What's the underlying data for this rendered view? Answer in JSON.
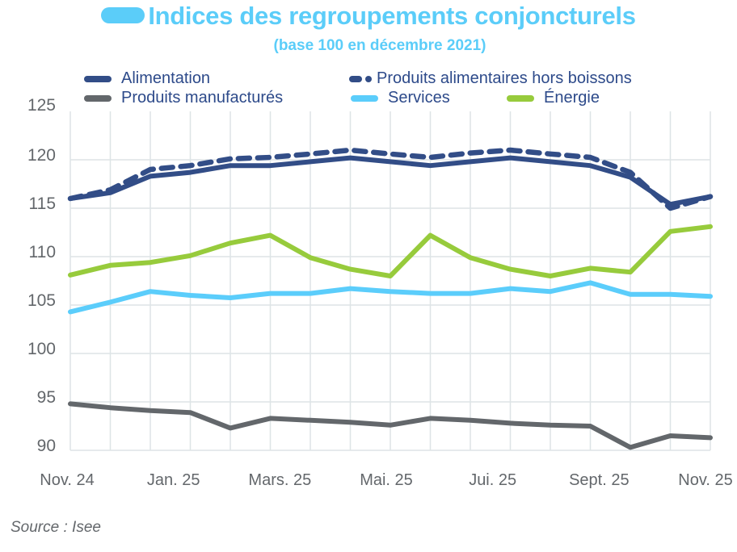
{
  "header": {
    "title": "Indices des regroupements conjoncturels",
    "subtitle": "(base 100 en décembre 2021)",
    "title_color": "#5bcdf9"
  },
  "legend": [
    {
      "label": "Alimentation",
      "color": "#324d87",
      "style": "solid"
    },
    {
      "label": "Produits alimentaires hors boissons",
      "color": "#324d87",
      "style": "dashed"
    },
    {
      "label": "Produits manufacturés",
      "color": "#63676b",
      "style": "solid"
    },
    {
      "label": "Services",
      "color": "#5bcdfb",
      "style": "solid"
    },
    {
      "label": "Énergie",
      "color": "#97cb3c",
      "style": "solid"
    }
  ],
  "source": "Source : Isee",
  "chart_data": {
    "type": "line",
    "title": "Indices des regroupements conjoncturels",
    "subtitle": "(base 100 en décembre 2021)",
    "xlabel": "",
    "ylabel": "",
    "ylim": [
      90,
      125
    ],
    "yticks": [
      90,
      95,
      100,
      105,
      110,
      115,
      120,
      125
    ],
    "x_tick_labels": [
      "Nov. 24",
      "Jan. 25",
      "Mars. 25",
      "Mai. 25",
      "Jui. 25",
      "Sept. 25",
      "Nov. 25"
    ],
    "n_points": 17,
    "grid": true,
    "legend_position": "top",
    "series": [
      {
        "name": "Alimentation",
        "color": "#324d87",
        "dashed": false,
        "values": [
          116.0,
          116.6,
          118.3,
          118.7,
          119.4,
          119.4,
          119.8,
          120.2,
          119.8,
          119.4,
          119.8,
          120.2,
          119.8,
          119.4,
          118.2,
          115.4,
          116.2
        ]
      },
      {
        "name": "Produits alimentaires hors boissons",
        "color": "#324d87",
        "dashed": true,
        "values": [
          116.0,
          116.9,
          119.0,
          119.4,
          120.1,
          120.25,
          120.6,
          121.0,
          120.6,
          120.25,
          120.7,
          121.0,
          120.6,
          120.25,
          118.7,
          115.0,
          116.2
        ]
      },
      {
        "name": "Produits manufacturés",
        "color": "#63676b",
        "dashed": false,
        "values": [
          94.8,
          94.4,
          94.1,
          93.9,
          92.3,
          93.3,
          93.1,
          92.9,
          92.6,
          93.3,
          93.1,
          92.8,
          92.6,
          92.5,
          90.3,
          91.5,
          91.3
        ]
      },
      {
        "name": "Services",
        "color": "#5bcdfb",
        "dashed": false,
        "values": [
          104.3,
          105.3,
          106.4,
          106.0,
          105.75,
          106.2,
          106.2,
          106.7,
          106.4,
          106.2,
          106.2,
          106.7,
          106.4,
          107.3,
          106.1,
          106.1,
          105.9
        ]
      },
      {
        "name": "Énergie",
        "color": "#97cb3c",
        "dashed": false,
        "values": [
          108.1,
          109.1,
          109.4,
          110.1,
          111.4,
          112.2,
          109.9,
          108.7,
          108.0,
          112.2,
          109.9,
          108.7,
          108.0,
          108.8,
          108.4,
          112.6,
          113.1
        ]
      }
    ]
  }
}
